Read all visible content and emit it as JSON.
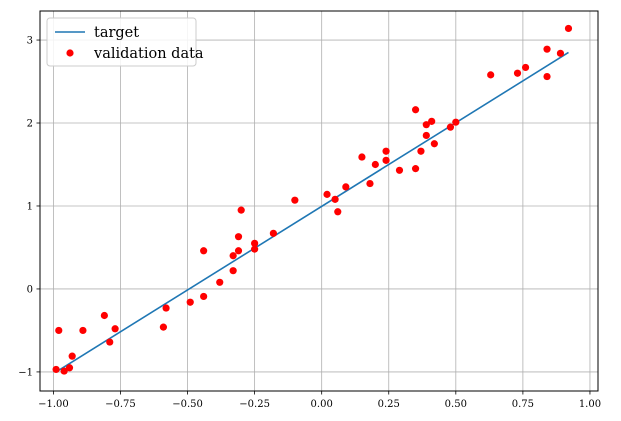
{
  "chart_data": {
    "type": "scatter",
    "xlim": [
      -1.05,
      1.03
    ],
    "ylim": [
      -1.23,
      3.35
    ],
    "grid": true,
    "legend_position": "top-left",
    "x_ticks": [
      {
        "value": -1.0,
        "label": "−1.00"
      },
      {
        "value": -0.75,
        "label": "−0.75"
      },
      {
        "value": -0.5,
        "label": "−0.50"
      },
      {
        "value": -0.25,
        "label": "−0.25"
      },
      {
        "value": 0.0,
        "label": "0.00"
      },
      {
        "value": 0.25,
        "label": "0.25"
      },
      {
        "value": 0.5,
        "label": "0.50"
      },
      {
        "value": 0.75,
        "label": "0.75"
      },
      {
        "value": 1.0,
        "label": "1.00"
      }
    ],
    "y_ticks": [
      {
        "value": -1,
        "label": "−1"
      },
      {
        "value": 0,
        "label": "0"
      },
      {
        "value": 1,
        "label": "1"
      },
      {
        "value": 2,
        "label": "2"
      },
      {
        "value": 3,
        "label": "3"
      }
    ],
    "series": [
      {
        "name": "target",
        "kind": "line",
        "color": "#1f77b4",
        "x": [
          -0.99,
          0.92
        ],
        "y": [
          -1.0,
          2.85
        ]
      },
      {
        "name": "validation data",
        "kind": "scatter",
        "color": "#ff0000",
        "points": [
          [
            -0.99,
            -0.97
          ],
          [
            -0.98,
            -0.5
          ],
          [
            -0.96,
            -0.99
          ],
          [
            -0.94,
            -0.95
          ],
          [
            -0.93,
            -0.81
          ],
          [
            -0.89,
            -0.5
          ],
          [
            -0.81,
            -0.32
          ],
          [
            -0.79,
            -0.64
          ],
          [
            -0.77,
            -0.48
          ],
          [
            -0.59,
            -0.46
          ],
          [
            -0.58,
            -0.23
          ],
          [
            -0.49,
            -0.16
          ],
          [
            -0.44,
            -0.09
          ],
          [
            -0.44,
            0.46
          ],
          [
            -0.38,
            0.08
          ],
          [
            -0.33,
            0.4
          ],
          [
            -0.33,
            0.22
          ],
          [
            -0.31,
            0.63
          ],
          [
            -0.31,
            0.46
          ],
          [
            -0.3,
            0.95
          ],
          [
            -0.25,
            0.55
          ],
          [
            -0.25,
            0.48
          ],
          [
            -0.18,
            0.67
          ],
          [
            -0.1,
            1.07
          ],
          [
            0.02,
            1.14
          ],
          [
            0.05,
            1.08
          ],
          [
            0.06,
            0.93
          ],
          [
            0.09,
            1.23
          ],
          [
            0.15,
            1.59
          ],
          [
            0.18,
            1.27
          ],
          [
            0.2,
            1.5
          ],
          [
            0.24,
            1.66
          ],
          [
            0.24,
            1.55
          ],
          [
            0.29,
            1.43
          ],
          [
            0.35,
            2.16
          ],
          [
            0.35,
            1.45
          ],
          [
            0.37,
            1.66
          ],
          [
            0.39,
            1.98
          ],
          [
            0.39,
            1.85
          ],
          [
            0.41,
            2.02
          ],
          [
            0.42,
            1.75
          ],
          [
            0.48,
            1.95
          ],
          [
            0.5,
            2.01
          ],
          [
            0.63,
            2.58
          ],
          [
            0.73,
            2.6
          ],
          [
            0.76,
            2.67
          ],
          [
            0.84,
            2.89
          ],
          [
            0.84,
            2.56
          ],
          [
            0.89,
            2.84
          ],
          [
            0.92,
            3.14
          ]
        ]
      }
    ]
  }
}
